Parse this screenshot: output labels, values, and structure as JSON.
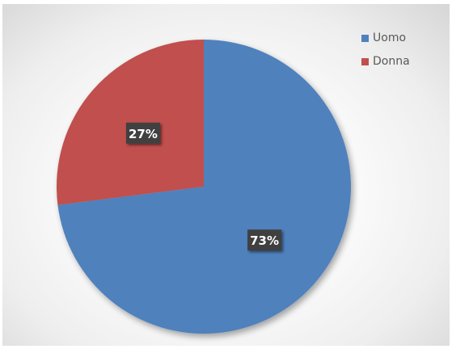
{
  "chart_data": {
    "type": "pie",
    "title": "",
    "categories": [
      "Uomo",
      "Donna"
    ],
    "values": [
      73,
      27
    ],
    "labels": [
      "73%",
      "27%"
    ],
    "colors": [
      "#4f81bd",
      "#c0504d"
    ],
    "legend_position": "top-right",
    "start_angle": "12 o'clock",
    "direction": "clockwise"
  }
}
